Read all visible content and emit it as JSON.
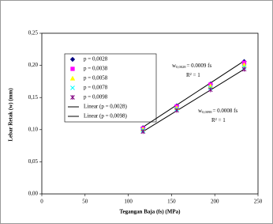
{
  "chart_data": {
    "type": "scatter",
    "xlabel": "Tegangan Baja (fs) (MPa)",
    "ylabel": "Lebar Retak (w) (mm)",
    "x": [
      117,
      156,
      195,
      234
    ],
    "series": [
      {
        "name": "p = 0,0028",
        "color": "#000080",
        "marker": "diamond",
        "values": [
          0.103,
          0.137,
          0.171,
          0.206
        ]
      },
      {
        "name": "p = 0,0038",
        "color": "#ff00ff",
        "marker": "square",
        "values": [
          0.102,
          0.136,
          0.17,
          0.204
        ]
      },
      {
        "name": "p = 0,0058",
        "color": "#ffff00",
        "marker": "triangle",
        "values": [
          0.101,
          0.134,
          0.168,
          0.201
        ]
      },
      {
        "name": "p = 0,0078",
        "color": "#00ffff",
        "marker": "x",
        "values": [
          0.099,
          0.132,
          0.165,
          0.197
        ]
      },
      {
        "name": "p = 0,0098",
        "color": "#800080",
        "marker": "star",
        "values": [
          0.097,
          0.13,
          0.162,
          0.194
        ]
      }
    ],
    "lines": [
      {
        "name": "Linear (p = 0,0028)",
        "color": "#000000",
        "x": [
          117,
          234
        ],
        "values": [
          0.104,
          0.207
        ]
      },
      {
        "name": "Linear (p = 0,0098)",
        "color": "#000000",
        "x": [
          117,
          234
        ],
        "values": [
          0.097,
          0.194
        ]
      }
    ],
    "annotations": [
      {
        "text": "w",
        "subscript": "0,0028",
        "suffix": "= 0.0009 fs"
      },
      {
        "text": "R² = 1"
      },
      {
        "text": "w",
        "subscript": "0,0098",
        "suffix": "= 0.0008 fs"
      },
      {
        "text": "R² = 1"
      }
    ],
    "xlim": [
      0,
      250
    ],
    "xticks": [
      0,
      50,
      100,
      150,
      200,
      250
    ],
    "ylim": [
      0,
      0.25
    ],
    "yticks": [
      {
        "value": 0,
        "label": "0,00"
      },
      {
        "value": 0.05,
        "label": "0,05"
      },
      {
        "value": 0.1,
        "label": "0,10"
      },
      {
        "value": 0.15,
        "label": "0,15"
      },
      {
        "value": 0.2,
        "label": "0,20"
      },
      {
        "value": 0.25,
        "label": "0,25"
      }
    ],
    "grid": false
  }
}
